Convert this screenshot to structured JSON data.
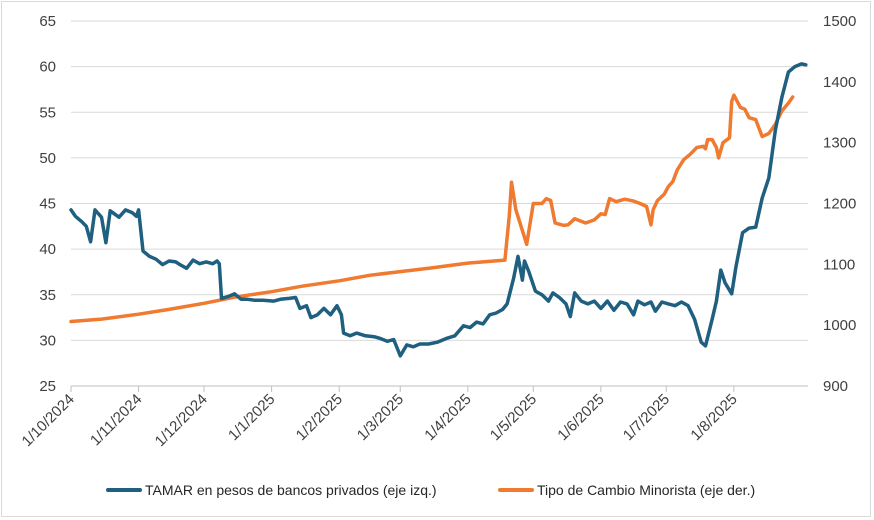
{
  "chart_data": {
    "type": "line",
    "x_axis": {
      "tick_labels": [
        "1/10/2024",
        "1/11/2024",
        "1/12/2024",
        "1/1/2025",
        "1/2/2025",
        "1/3/2025",
        "1/4/2025",
        "1/5/2025",
        "1/6/2025",
        "1/7/2025",
        "1/8/2025"
      ]
    },
    "y_left": {
      "ylim": [
        25,
        65
      ],
      "ticks": [
        "25",
        "30",
        "35",
        "40",
        "45",
        "50",
        "55",
        "60",
        "65"
      ]
    },
    "y_right": {
      "ylim": [
        900,
        1500
      ],
      "ticks": [
        "900",
        "1000",
        "1100",
        "1200",
        "1300",
        "1400",
        "1500"
      ]
    },
    "grid": "horizontal",
    "legend_position": "bottom",
    "colors": {
      "tamar": "#1f5f7f",
      "tipo": "#f07a2f",
      "axis": "#bfbfbf",
      "grid": "#d9d9d9"
    },
    "series": [
      {
        "name": "TAMAR en pesos de bancos privados (eje izq.)",
        "axis": "left",
        "points": [
          [
            "2024-10-01",
            44.3
          ],
          [
            "2024-10-03",
            43.6
          ],
          [
            "2024-10-06",
            43.0
          ],
          [
            "2024-10-08",
            42.5
          ],
          [
            "2024-10-10",
            40.8
          ],
          [
            "2024-10-12",
            44.3
          ],
          [
            "2024-10-15",
            43.5
          ],
          [
            "2024-10-17",
            40.7
          ],
          [
            "2024-10-19",
            44.2
          ],
          [
            "2024-10-23",
            43.5
          ],
          [
            "2024-10-26",
            44.3
          ],
          [
            "2024-10-29",
            44.0
          ],
          [
            "2024-10-31",
            43.6
          ],
          [
            "2024-11-01",
            44.3
          ],
          [
            "2024-11-03",
            39.8
          ],
          [
            "2024-11-06",
            39.2
          ],
          [
            "2024-11-09",
            38.9
          ],
          [
            "2024-11-12",
            38.3
          ],
          [
            "2024-11-15",
            38.7
          ],
          [
            "2024-11-18",
            38.6
          ],
          [
            "2024-11-20",
            38.3
          ],
          [
            "2024-11-23",
            37.9
          ],
          [
            "2024-11-26",
            38.8
          ],
          [
            "2024-11-29",
            38.4
          ],
          [
            "2024-12-02",
            38.6
          ],
          [
            "2024-12-05",
            38.4
          ],
          [
            "2024-12-07",
            38.7
          ],
          [
            "2024-12-08",
            38.4
          ],
          [
            "2024-12-09",
            34.6
          ],
          [
            "2024-12-12",
            34.8
          ],
          [
            "2024-12-15",
            35.1
          ],
          [
            "2024-12-18",
            34.5
          ],
          [
            "2024-12-21",
            34.5
          ],
          [
            "2024-12-24",
            34.4
          ],
          [
            "2024-12-28",
            34.4
          ],
          [
            "2025-01-02",
            34.3
          ],
          [
            "2025-01-05",
            34.5
          ],
          [
            "2025-01-09",
            34.6
          ],
          [
            "2025-01-12",
            34.7
          ],
          [
            "2025-01-14",
            33.5
          ],
          [
            "2025-01-17",
            33.8
          ],
          [
            "2025-01-19",
            32.5
          ],
          [
            "2025-01-22",
            32.8
          ],
          [
            "2025-01-25",
            33.5
          ],
          [
            "2025-01-28",
            32.8
          ],
          [
            "2025-01-31",
            33.8
          ],
          [
            "2025-02-02",
            32.8
          ],
          [
            "2025-02-03",
            30.8
          ],
          [
            "2025-02-06",
            30.5
          ],
          [
            "2025-02-09",
            30.8
          ],
          [
            "2025-02-13",
            30.5
          ],
          [
            "2025-02-17",
            30.4
          ],
          [
            "2025-02-20",
            30.2
          ],
          [
            "2025-02-23",
            29.9
          ],
          [
            "2025-02-26",
            30.1
          ],
          [
            "2025-03-01",
            28.3
          ],
          [
            "2025-03-04",
            29.5
          ],
          [
            "2025-03-07",
            29.3
          ],
          [
            "2025-03-10",
            29.6
          ],
          [
            "2025-03-14",
            29.6
          ],
          [
            "2025-03-18",
            29.8
          ],
          [
            "2025-03-22",
            30.2
          ],
          [
            "2025-03-26",
            30.5
          ],
          [
            "2025-03-30",
            31.6
          ],
          [
            "2025-04-02",
            31.4
          ],
          [
            "2025-04-05",
            32.0
          ],
          [
            "2025-04-08",
            31.8
          ],
          [
            "2025-04-11",
            32.8
          ],
          [
            "2025-04-14",
            33.0
          ],
          [
            "2025-04-17",
            33.4
          ],
          [
            "2025-04-19",
            34.0
          ],
          [
            "2025-04-22",
            36.8
          ],
          [
            "2025-04-24",
            39.2
          ],
          [
            "2025-04-26",
            36.6
          ],
          [
            "2025-04-27",
            38.7
          ],
          [
            "2025-04-29",
            37.5
          ],
          [
            "2025-05-02",
            35.4
          ],
          [
            "2025-05-05",
            35.0
          ],
          [
            "2025-05-08",
            34.3
          ],
          [
            "2025-05-10",
            35.2
          ],
          [
            "2025-05-13",
            34.7
          ],
          [
            "2025-05-16",
            34.0
          ],
          [
            "2025-05-18",
            32.6
          ],
          [
            "2025-05-20",
            35.2
          ],
          [
            "2025-05-23",
            34.3
          ],
          [
            "2025-05-26",
            34.0
          ],
          [
            "2025-05-29",
            34.3
          ],
          [
            "2025-06-01",
            33.5
          ],
          [
            "2025-06-04",
            34.3
          ],
          [
            "2025-06-07",
            33.3
          ],
          [
            "2025-06-10",
            34.2
          ],
          [
            "2025-06-13",
            34.0
          ],
          [
            "2025-06-16",
            32.8
          ],
          [
            "2025-06-18",
            34.3
          ],
          [
            "2025-06-21",
            33.9
          ],
          [
            "2025-06-24",
            34.2
          ],
          [
            "2025-06-26",
            33.2
          ],
          [
            "2025-06-29",
            34.2
          ],
          [
            "2025-07-02",
            34.0
          ],
          [
            "2025-07-05",
            33.8
          ],
          [
            "2025-07-08",
            34.2
          ],
          [
            "2025-07-11",
            33.8
          ],
          [
            "2025-07-14",
            32.3
          ],
          [
            "2025-07-17",
            29.8
          ],
          [
            "2025-07-19",
            29.4
          ],
          [
            "2025-07-22",
            32.3
          ],
          [
            "2025-07-24",
            34.3
          ],
          [
            "2025-07-26",
            37.7
          ],
          [
            "2025-07-28",
            36.3
          ],
          [
            "2025-07-31",
            35.1
          ],
          [
            "2025-08-02",
            38.1
          ],
          [
            "2025-08-05",
            41.8
          ],
          [
            "2025-08-08",
            42.3
          ],
          [
            "2025-08-11",
            42.4
          ],
          [
            "2025-08-14",
            45.6
          ],
          [
            "2025-08-17",
            47.8
          ],
          [
            "2025-08-20",
            53.0
          ],
          [
            "2025-08-23",
            56.6
          ],
          [
            "2025-08-26",
            59.4
          ],
          [
            "2025-08-29",
            60.0
          ],
          [
            "2025-09-01",
            60.3
          ],
          [
            "2025-09-03",
            60.2
          ]
        ]
      },
      {
        "name": "Tipo de Cambio Minorista (eje der.)",
        "axis": "right",
        "points": [
          [
            "2024-10-01",
            1006
          ],
          [
            "2024-10-15",
            1010
          ],
          [
            "2024-11-01",
            1018
          ],
          [
            "2024-11-15",
            1026
          ],
          [
            "2024-12-01",
            1036
          ],
          [
            "2024-12-15",
            1046
          ],
          [
            "2025-01-01",
            1055
          ],
          [
            "2025-01-15",
            1064
          ],
          [
            "2025-02-01",
            1073
          ],
          [
            "2025-02-15",
            1082
          ],
          [
            "2025-03-01",
            1088
          ],
          [
            "2025-03-15",
            1094
          ],
          [
            "2025-04-01",
            1102
          ],
          [
            "2025-04-18",
            1107
          ],
          [
            "2025-04-20",
            1180
          ],
          [
            "2025-04-21",
            1235
          ],
          [
            "2025-04-23",
            1190
          ],
          [
            "2025-04-28",
            1133
          ],
          [
            "2025-05-01",
            1200
          ],
          [
            "2025-05-05",
            1200
          ],
          [
            "2025-05-07",
            1208
          ],
          [
            "2025-05-09",
            1205
          ],
          [
            "2025-05-11",
            1168
          ],
          [
            "2025-05-15",
            1164
          ],
          [
            "2025-05-17",
            1165
          ],
          [
            "2025-05-20",
            1175
          ],
          [
            "2025-05-25",
            1168
          ],
          [
            "2025-05-29",
            1173
          ],
          [
            "2025-06-01",
            1183
          ],
          [
            "2025-06-03",
            1182
          ],
          [
            "2025-06-05",
            1208
          ],
          [
            "2025-06-08",
            1203
          ],
          [
            "2025-06-12",
            1207
          ],
          [
            "2025-06-16",
            1204
          ],
          [
            "2025-06-19",
            1200
          ],
          [
            "2025-06-22",
            1195
          ],
          [
            "2025-06-24",
            1165
          ],
          [
            "2025-06-25",
            1190
          ],
          [
            "2025-06-27",
            1205
          ],
          [
            "2025-06-30",
            1215
          ],
          [
            "2025-07-02",
            1228
          ],
          [
            "2025-07-04",
            1236
          ],
          [
            "2025-07-06",
            1255
          ],
          [
            "2025-07-09",
            1272
          ],
          [
            "2025-07-12",
            1281
          ],
          [
            "2025-07-15",
            1292
          ],
          [
            "2025-07-18",
            1294
          ],
          [
            "2025-07-19",
            1290
          ],
          [
            "2025-07-20",
            1305
          ],
          [
            "2025-07-22",
            1305
          ],
          [
            "2025-07-24",
            1292
          ],
          [
            "2025-07-25",
            1275
          ],
          [
            "2025-07-27",
            1300
          ],
          [
            "2025-07-30",
            1308
          ],
          [
            "2025-07-31",
            1368
          ],
          [
            "2025-08-01",
            1378
          ],
          [
            "2025-08-04",
            1358
          ],
          [
            "2025-08-06",
            1355
          ],
          [
            "2025-08-08",
            1341
          ],
          [
            "2025-08-11",
            1338
          ],
          [
            "2025-08-14",
            1310
          ],
          [
            "2025-08-17",
            1315
          ],
          [
            "2025-08-20",
            1330
          ],
          [
            "2025-08-23",
            1352
          ],
          [
            "2025-08-26",
            1365
          ],
          [
            "2025-08-28",
            1375
          ]
        ]
      }
    ]
  }
}
